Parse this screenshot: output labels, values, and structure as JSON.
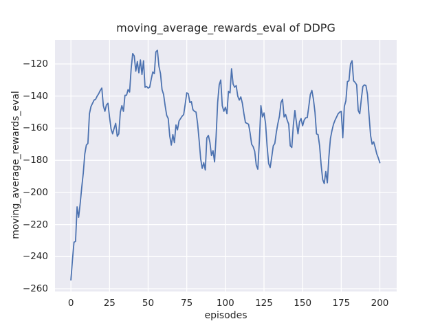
{
  "figure": {
    "background": "#ffffff",
    "plot_background": "#eaeaf2",
    "grid_color": "#ffffff",
    "text_color": "#262626"
  },
  "chart_data": {
    "type": "line",
    "title": "moving_average_rewards_eval of DDPG",
    "xlabel": "episodes",
    "ylabel": "moving_average_rewards_eval",
    "xlim": [
      -10.3,
      210.9
    ],
    "ylim": [
      -261.7,
      -105.0
    ],
    "grid": true,
    "legend": false,
    "x_ticks": [
      {
        "v": 0,
        "label": "0"
      },
      {
        "v": 25,
        "label": "25"
      },
      {
        "v": 50,
        "label": "50"
      },
      {
        "v": 75,
        "label": "75"
      },
      {
        "v": 100,
        "label": "100"
      },
      {
        "v": 125,
        "label": "125"
      },
      {
        "v": 150,
        "label": "150"
      },
      {
        "v": 175,
        "label": "175"
      },
      {
        "v": 200,
        "label": "200"
      }
    ],
    "y_ticks": [
      {
        "v": -120,
        "label": "−120"
      },
      {
        "v": -140,
        "label": "−140"
      },
      {
        "v": -160,
        "label": "−160"
      },
      {
        "v": -180,
        "label": "−180"
      },
      {
        "v": -200,
        "label": "−200"
      },
      {
        "v": -220,
        "label": "−220"
      },
      {
        "v": -240,
        "label": "−240"
      },
      {
        "v": -260,
        "label": "−260"
      }
    ],
    "series": [
      {
        "name": "moving_average_rewards_eval",
        "color": "#4c72b0",
        "line_width": 1.8,
        "x_start": 0,
        "x_step": 1,
        "values": [
          -254.5,
          -242,
          -231,
          -230.5,
          -209,
          -215.5,
          -207,
          -197,
          -188,
          -176,
          -170.5,
          -169.5,
          -151,
          -146.5,
          -144.5,
          -142.5,
          -142,
          -140,
          -138.5,
          -136.5,
          -135,
          -146,
          -149.5,
          -145.5,
          -144.5,
          -153,
          -160.5,
          -163.5,
          -160,
          -157,
          -165,
          -163.5,
          -150,
          -146,
          -149.5,
          -139.5,
          -139.5,
          -136,
          -137.5,
          -123,
          -113.5,
          -115,
          -124.5,
          -118.5,
          -125.5,
          -117.5,
          -126.5,
          -118,
          -134.5,
          -134,
          -135,
          -134.5,
          -129.5,
          -125,
          -126,
          -112.5,
          -111.5,
          -121.5,
          -126,
          -136,
          -139,
          -146,
          -152,
          -154,
          -165,
          -170.5,
          -164,
          -169,
          -158,
          -161,
          -155.5,
          -154,
          -152.5,
          -151.5,
          -145,
          -138,
          -138.5,
          -144,
          -143.5,
          -148.5,
          -149.5,
          -150,
          -157,
          -167.5,
          -179,
          -185,
          -181.5,
          -186,
          -166,
          -164.5,
          -169,
          -177,
          -174,
          -181,
          -165,
          -144,
          -133,
          -130,
          -146,
          -149.5,
          -147,
          -151,
          -137,
          -138,
          -123,
          -132.5,
          -134.5,
          -133.5,
          -140,
          -142.5,
          -140.5,
          -144.5,
          -151,
          -156.5,
          -157,
          -157.5,
          -163,
          -170,
          -171.5,
          -174.5,
          -183,
          -185.5,
          -168,
          -146,
          -153,
          -150.5,
          -157,
          -171,
          -182,
          -184.5,
          -178,
          -171,
          -169.5,
          -162.5,
          -157,
          -152.5,
          -144,
          -142,
          -153,
          -151.5,
          -155,
          -157.5,
          -171,
          -172,
          -158,
          -149,
          -156.5,
          -163.5,
          -156,
          -154,
          -158.5,
          -155,
          -153.5,
          -153.5,
          -146.5,
          -139,
          -136.5,
          -142,
          -150,
          -163.5,
          -164,
          -171,
          -183,
          -192,
          -194.5,
          -187,
          -194,
          -178,
          -166.5,
          -161.5,
          -157.5,
          -155,
          -153,
          -151,
          -150,
          -149.5,
          -166,
          -146.5,
          -143,
          -131,
          -130.5,
          -120,
          -118,
          -130.5,
          -131.5,
          -133,
          -149,
          -151,
          -142,
          -134,
          -133,
          -133.5,
          -139,
          -152,
          -164.5,
          -170,
          -168.5,
          -172,
          -176,
          -178.5,
          -181.5
        ]
      }
    ]
  }
}
